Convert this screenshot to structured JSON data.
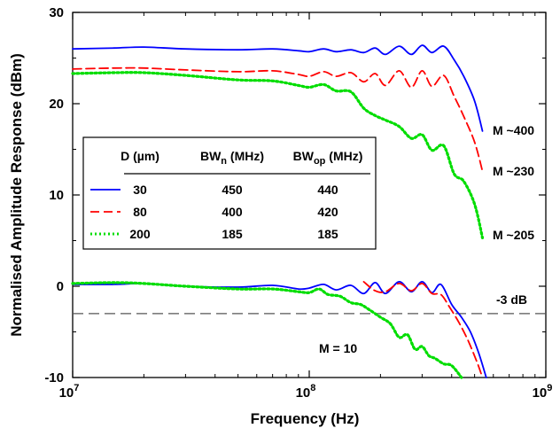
{
  "chart_data": {
    "type": "line",
    "xlabel": "Frequency (Hz)",
    "ylabel": "Normalised Amplitude Response (dBm)",
    "xscale": "log",
    "xlim": [
      10000000,
      1000000000
    ],
    "ylim": [
      -10,
      30
    ],
    "grid": false,
    "legend_placement": "middle-left",
    "x_ticks": [
      {
        "value": 10000000,
        "base": "10",
        "exp": "7"
      },
      {
        "value": 100000000,
        "base": "10",
        "exp": "8"
      },
      {
        "value": 1000000000,
        "base": "10",
        "exp": "9"
      }
    ],
    "y_ticks": [
      "-10",
      "0",
      "10",
      "20",
      "30"
    ],
    "legend": {
      "headers": {
        "d": "D (µm)",
        "bwn_main": "BW",
        "bwn_sub": "n",
        "bwn_unit": " (MHz)",
        "bwop_main": "BW",
        "bwop_sub": "op",
        "bwop_unit": " (MHz)"
      },
      "rows": [
        {
          "d": "30",
          "bwn": "450",
          "bwop": "440"
        },
        {
          "d": "80",
          "bwn": "400",
          "bwop": "420"
        },
        {
          "d": "200",
          "bwn": "185",
          "bwop": "185"
        }
      ]
    },
    "annotations": {
      "m400": "M ~400",
      "m230": "M ~230",
      "m205": "M ~205",
      "m10": "M = 10",
      "minus3db": "-3 dB"
    },
    "reference_line": {
      "y": -3
    },
    "series": [
      {
        "group": "high-gain",
        "color": "#0000ff",
        "dash": "solid",
        "x": [
          10000000,
          15000000,
          20000000,
          30000000,
          50000000,
          70000000,
          90000000,
          100000000,
          115000000,
          130000000,
          150000000,
          170000000,
          190000000,
          210000000,
          240000000,
          270000000,
          300000000,
          330000000,
          370000000,
          410000000,
          450000000,
          500000000,
          540000000
        ],
        "y": [
          26.0,
          26.1,
          26.2,
          26.0,
          25.9,
          26.0,
          25.8,
          25.7,
          26.0,
          25.7,
          25.9,
          25.6,
          26.1,
          25.4,
          26.3,
          25.4,
          26.4,
          25.6,
          26.3,
          24.8,
          23.0,
          20.3,
          17.0
        ]
      },
      {
        "group": "high-gain",
        "color": "#ff0000",
        "dash": "dashed",
        "x": [
          10000000,
          15000000,
          20000000,
          30000000,
          50000000,
          70000000,
          90000000,
          100000000,
          115000000,
          130000000,
          150000000,
          170000000,
          190000000,
          210000000,
          240000000,
          270000000,
          300000000,
          330000000,
          370000000,
          410000000,
          450000000,
          500000000,
          540000000
        ],
        "y": [
          23.8,
          23.9,
          23.9,
          23.7,
          23.5,
          23.6,
          23.2,
          23.0,
          23.5,
          23.0,
          23.4,
          22.4,
          23.3,
          22.0,
          23.6,
          21.8,
          23.6,
          21.9,
          23.1,
          20.8,
          18.6,
          15.8,
          12.6
        ]
      },
      {
        "group": "high-gain",
        "color": "#00dd00",
        "dash": "dotted",
        "x": [
          10000000,
          15000000,
          20000000,
          30000000,
          50000000,
          70000000,
          90000000,
          100000000,
          115000000,
          130000000,
          150000000,
          170000000,
          190000000,
          210000000,
          240000000,
          270000000,
          300000000,
          330000000,
          370000000,
          410000000,
          450000000,
          500000000,
          540000000
        ],
        "y": [
          23.3,
          23.4,
          23.4,
          23.1,
          22.6,
          22.5,
          22.0,
          21.8,
          22.1,
          21.4,
          21.3,
          19.5,
          18.7,
          18.2,
          17.5,
          16.2,
          16.6,
          14.9,
          15.4,
          12.3,
          11.5,
          9.0,
          5.3
        ]
      },
      {
        "group": "m10",
        "color": "#0000ff",
        "dash": "solid",
        "x": [
          10000000,
          15000000,
          20000000,
          30000000,
          50000000,
          70000000,
          90000000,
          100000000,
          115000000,
          130000000,
          150000000,
          170000000,
          190000000,
          210000000,
          240000000,
          270000000,
          300000000,
          330000000,
          360000000,
          400000000,
          440000000,
          480000000,
          520000000,
          560000000
        ],
        "y": [
          0.2,
          0.2,
          0.3,
          0.0,
          -0.1,
          0.1,
          -0.3,
          -0.2,
          0.2,
          -0.4,
          0.1,
          -0.8,
          0.4,
          -0.8,
          0.5,
          -0.6,
          0.5,
          -0.7,
          0.2,
          -2.0,
          -3.4,
          -5.0,
          -7.3,
          -10.0
        ]
      },
      {
        "group": "m10",
        "color": "#ff0000",
        "dash": "dashed",
        "x": [
          170000000,
          190000000,
          210000000,
          240000000,
          270000000,
          300000000,
          330000000,
          360000000,
          390000000,
          430000000,
          470000000,
          510000000,
          540000000
        ],
        "y": [
          0.5,
          -0.5,
          -0.6,
          0.3,
          -0.5,
          0.3,
          -0.8,
          -0.9,
          -2.2,
          -4.0,
          -6.0,
          -8.2,
          -10.0
        ]
      },
      {
        "group": "m10",
        "color": "#00dd00",
        "dash": "dotted",
        "x": [
          10000000,
          15000000,
          20000000,
          30000000,
          50000000,
          70000000,
          90000000,
          100000000,
          110000000,
          120000000,
          135000000,
          150000000,
          165000000,
          180000000,
          200000000,
          220000000,
          240000000,
          260000000,
          280000000,
          300000000,
          320000000,
          340000000,
          370000000,
          400000000,
          440000000
        ],
        "y": [
          0.3,
          0.4,
          0.3,
          0.0,
          -0.3,
          -0.3,
          -0.6,
          -0.7,
          -0.3,
          -0.9,
          -1.1,
          -1.8,
          -2.0,
          -2.6,
          -3.4,
          -4.1,
          -5.6,
          -5.3,
          -6.9,
          -6.6,
          -7.6,
          -7.9,
          -8.5,
          -8.7,
          -10.0
        ]
      }
    ]
  }
}
